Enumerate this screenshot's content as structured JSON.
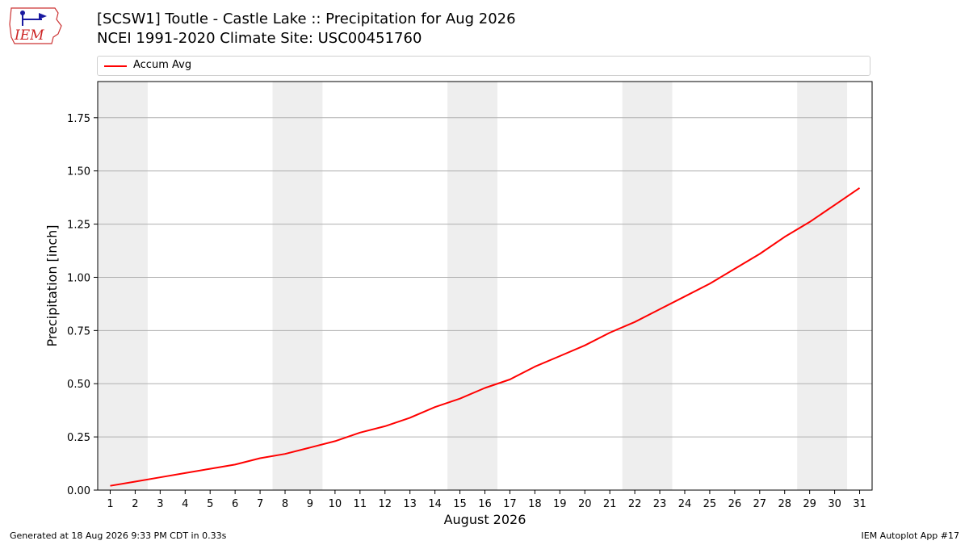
{
  "logo": {
    "text": "IEM",
    "icon": "iem-logo"
  },
  "title_line1": "[SCSW1] Toutle - Castle Lake :: Precipitation for Aug 2026",
  "title_line2": "NCEI 1991-2020 Climate Site: USC00451760",
  "footer": {
    "left": "Generated at 18 Aug 2026 9:33 PM CDT in 0.33s",
    "right": "IEM Autoplot App #17"
  },
  "chart_data": {
    "type": "line",
    "xlabel": "August 2026",
    "ylabel": "Precipitation [inch]",
    "x": [
      1,
      2,
      3,
      4,
      5,
      6,
      7,
      8,
      9,
      10,
      11,
      12,
      13,
      14,
      15,
      16,
      17,
      18,
      19,
      20,
      21,
      22,
      23,
      24,
      25,
      26,
      27,
      28,
      29,
      30,
      31
    ],
    "xlim": [
      0.5,
      31.5
    ],
    "ylim": [
      0,
      1.92
    ],
    "yticks": [
      "0.00",
      "0.25",
      "0.50",
      "0.75",
      "1.00",
      "1.25",
      "1.50",
      "1.75"
    ],
    "ytick_values": [
      0,
      0.25,
      0.5,
      0.75,
      1.0,
      1.25,
      1.5,
      1.75
    ],
    "grid": "horizontal",
    "legend": "top",
    "weekend_shading": [
      [
        0.5,
        2.5
      ],
      [
        7.5,
        9.5
      ],
      [
        14.5,
        16.5
      ],
      [
        21.5,
        23.5
      ],
      [
        28.5,
        30.5
      ]
    ],
    "shading_color": "#eeeeee",
    "series": [
      {
        "name": "Accum Avg",
        "color": "#ff0000",
        "values": [
          0.02,
          0.04,
          0.06,
          0.08,
          0.1,
          0.12,
          0.15,
          0.17,
          0.2,
          0.23,
          0.27,
          0.3,
          0.34,
          0.39,
          0.43,
          0.48,
          0.52,
          0.58,
          0.63,
          0.68,
          0.74,
          0.79,
          0.85,
          0.91,
          0.97,
          1.04,
          1.11,
          1.19,
          1.26,
          1.34,
          1.42
        ]
      }
    ]
  }
}
